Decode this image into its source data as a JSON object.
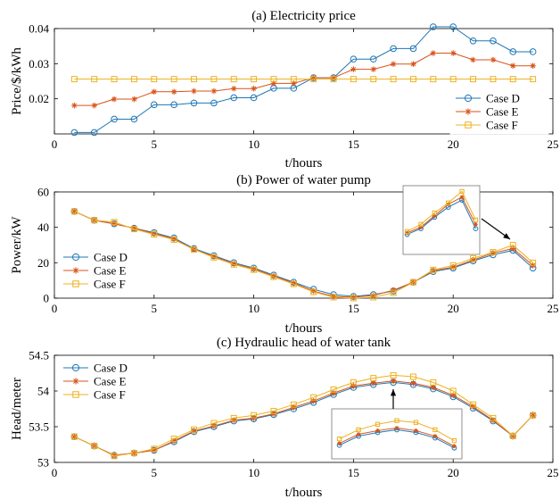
{
  "chart_data": [
    {
      "type": "line",
      "title": "(a) Electricity price",
      "xlabel": "t/hours",
      "ylabel": "Price/$/kWh",
      "xlim": [
        0,
        25
      ],
      "ylim": [
        0.01,
        0.04
      ],
      "xticks": [
        0,
        5,
        10,
        15,
        20,
        25
      ],
      "yticks": [
        0.02,
        0.03,
        0.04
      ],
      "ytick_labels": [
        "0.02",
        "0.03",
        "0.04"
      ],
      "grid": false,
      "legend_position": "lower-right",
      "x": [
        1,
        2,
        3,
        4,
        5,
        6,
        7,
        8,
        9,
        10,
        11,
        12,
        13,
        14,
        15,
        16,
        17,
        18,
        19,
        20,
        21,
        22,
        23,
        24
      ],
      "series": [
        {
          "name": "Case D",
          "color": "#1f77b4",
          "marker": "circle",
          "values": [
            0.0104,
            0.0104,
            0.0142,
            0.0142,
            0.0183,
            0.0183,
            0.0188,
            0.0188,
            0.0203,
            0.0203,
            0.023,
            0.023,
            0.026,
            0.026,
            0.0313,
            0.0313,
            0.0343,
            0.0343,
            0.0405,
            0.0405,
            0.0365,
            0.0365,
            0.0334,
            0.0334
          ]
        },
        {
          "name": "Case E",
          "color": "#d95319",
          "marker": "asterisk",
          "values": [
            0.0181,
            0.0181,
            0.0199,
            0.0199,
            0.022,
            0.022,
            0.0222,
            0.0222,
            0.0229,
            0.0229,
            0.0244,
            0.0244,
            0.026,
            0.026,
            0.0284,
            0.0284,
            0.0299,
            0.0299,
            0.033,
            0.033,
            0.0311,
            0.0311,
            0.0294,
            0.0294
          ]
        },
        {
          "name": "Case F",
          "color": "#edb120",
          "marker": "square",
          "values": [
            0.0256,
            0.0256,
            0.0256,
            0.0256,
            0.0256,
            0.0256,
            0.0256,
            0.0256,
            0.0256,
            0.0256,
            0.0256,
            0.0256,
            0.0256,
            0.0256,
            0.0256,
            0.0256,
            0.0256,
            0.0256,
            0.0256,
            0.0256,
            0.0256,
            0.0256,
            0.0256,
            0.0256
          ]
        }
      ]
    },
    {
      "type": "line",
      "title": "(b) Power of water pump",
      "xlabel": "t/hours",
      "ylabel": "Power/kW",
      "xlim": [
        0,
        25
      ],
      "ylim": [
        0,
        60
      ],
      "xticks": [
        0,
        5,
        10,
        15,
        20,
        25
      ],
      "yticks": [
        0,
        20,
        40,
        60
      ],
      "ytick_labels": [
        "0",
        "20",
        "40",
        "60"
      ],
      "grid": false,
      "legend_position": "lower-left",
      "inset": "zoom of hours 19-24",
      "x": [
        1,
        2,
        3,
        4,
        5,
        6,
        7,
        8,
        9,
        10,
        11,
        12,
        13,
        14,
        15,
        16,
        17,
        18,
        19,
        20,
        21,
        22,
        23,
        24
      ],
      "series": [
        {
          "name": "Case D",
          "color": "#1f77b4",
          "marker": "circle",
          "values": [
            49,
            44,
            42,
            39.5,
            37,
            34,
            28,
            24,
            20,
            17,
            13,
            9,
            5,
            2,
            1,
            2,
            4,
            9,
            15,
            17,
            21,
            24.5,
            27,
            17
          ]
        },
        {
          "name": "Case E",
          "color": "#d95319",
          "marker": "asterisk",
          "values": [
            49,
            44,
            42,
            39.5,
            36.5,
            33.5,
            27.5,
            23.5,
            19.5,
            16.5,
            12.5,
            8.5,
            4,
            1,
            0.5,
            1.5,
            4.5,
            9,
            15.5,
            17.5,
            21.5,
            25.5,
            28,
            18.5
          ]
        },
        {
          "name": "Case F",
          "color": "#edb120",
          "marker": "square",
          "values": [
            49,
            44,
            43,
            39,
            36,
            33,
            27.5,
            23,
            19,
            16,
            12,
            8,
            3.5,
            0.5,
            0,
            0.5,
            3,
            9,
            16,
            18.5,
            22.5,
            26,
            30,
            20
          ]
        }
      ]
    },
    {
      "type": "line",
      "title": "(c) Hydraulic head of water tank",
      "xlabel": "t/hours",
      "ylabel": "Head/meter",
      "xlim": [
        0,
        25
      ],
      "ylim": [
        53,
        54.5
      ],
      "xticks": [
        0,
        5,
        10,
        15,
        20,
        25
      ],
      "yticks": [
        53,
        53.5,
        54,
        54.5
      ],
      "ytick_labels": [
        "53",
        "53.5",
        "54",
        "54.5"
      ],
      "grid": false,
      "legend_position": "top-left",
      "inset": "zoom of hours 14-20",
      "x": [
        1,
        2,
        3,
        4,
        5,
        6,
        7,
        8,
        9,
        10,
        11,
        12,
        13,
        14,
        15,
        16,
        17,
        18,
        19,
        20,
        21,
        22,
        23,
        24
      ],
      "series": [
        {
          "name": "Case D",
          "color": "#1f77b4",
          "marker": "circle",
          "values": [
            53.36,
            53.23,
            53.1,
            53.13,
            53.17,
            53.29,
            53.43,
            53.5,
            53.58,
            53.61,
            53.67,
            53.75,
            53.84,
            53.95,
            54.05,
            54.09,
            54.12,
            54.09,
            54.03,
            53.92,
            53.76,
            53.58,
            53.37,
            53.66
          ]
        },
        {
          "name": "Case E",
          "color": "#d95319",
          "marker": "asterisk",
          "values": [
            53.36,
            53.23,
            53.1,
            53.13,
            53.17,
            53.3,
            53.44,
            53.51,
            53.59,
            53.62,
            53.68,
            53.77,
            53.86,
            53.97,
            54.07,
            54.11,
            54.14,
            54.11,
            54.05,
            53.94,
            53.78,
            53.59,
            53.37,
            53.66
          ]
        },
        {
          "name": "Case F",
          "color": "#edb120",
          "marker": "square",
          "values": [
            53.36,
            53.23,
            53.09,
            53.13,
            53.19,
            53.33,
            53.46,
            53.55,
            53.62,
            53.66,
            53.72,
            53.81,
            53.91,
            54.02,
            54.12,
            54.18,
            54.22,
            54.2,
            54.12,
            54.0,
            53.81,
            53.62,
            53.37,
            53.66
          ]
        }
      ]
    }
  ]
}
